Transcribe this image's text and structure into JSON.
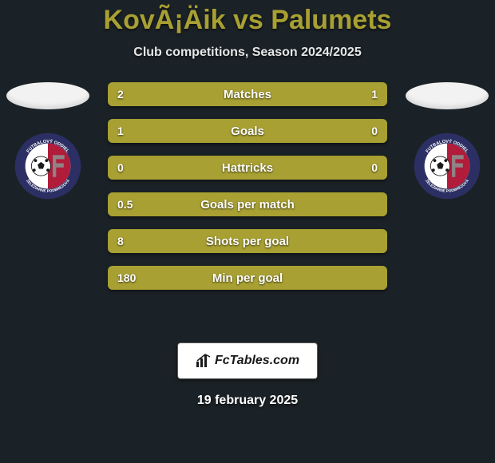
{
  "background_color": "#1b2227",
  "title": {
    "text": "KovÃ¡Äik vs Palumets",
    "color": "#a8a032",
    "fontsize": 34
  },
  "subtitle": {
    "text": "Club competitions, Season 2024/2025",
    "color": "#e6e6e6",
    "fontsize": 16
  },
  "players": {
    "left": {
      "avatar_fill": "#f2f2f2"
    },
    "right": {
      "avatar_fill": "#f2f2f2"
    }
  },
  "club_badge": {
    "outer_ring_fill": "#2c2f63",
    "inner_left_fill": "#ffffff",
    "inner_right_fill": "#b01c3a",
    "ring_text_color": "#ffffff",
    "text_top": "FUTBALOVÝ ODDIEL",
    "text_bottom": "ŽELEZIARNE PODBREZOVÁ",
    "ball_fill": "#ffffff",
    "ball_spots": "#1a1a1a"
  },
  "bar_style": {
    "height": 30,
    "gap": 16,
    "radius": 6,
    "left_color": "#a8a032",
    "right_color": "#a8a032",
    "base_color": "#3a3f44",
    "label_fontsize": 15,
    "value_fontsize": 14,
    "text_color": "#ffffff"
  },
  "stats": [
    {
      "label": "Matches",
      "left_val": "2",
      "right_val": "1",
      "left_pct": 66.7,
      "right_pct": 33.3
    },
    {
      "label": "Goals",
      "left_val": "1",
      "right_val": "0",
      "left_pct": 80.0,
      "right_pct": 20.0
    },
    {
      "label": "Hattricks",
      "left_val": "0",
      "right_val": "0",
      "left_pct": 50.0,
      "right_pct": 50.0
    },
    {
      "label": "Goals per match",
      "left_val": "0.5",
      "right_val": "",
      "left_pct": 100,
      "right_pct": 0
    },
    {
      "label": "Shots per goal",
      "left_val": "8",
      "right_val": "",
      "left_pct": 100,
      "right_pct": 0
    },
    {
      "label": "Min per goal",
      "left_val": "180",
      "right_val": "",
      "left_pct": 100,
      "right_pct": 0
    }
  ],
  "footer": {
    "brand_text": "FcTables.com",
    "icon_color": "#1a1a1a",
    "bg": "#ffffff",
    "border": "#5a5a5a"
  },
  "date": {
    "text": "19 february 2025",
    "fontsize": 16
  }
}
